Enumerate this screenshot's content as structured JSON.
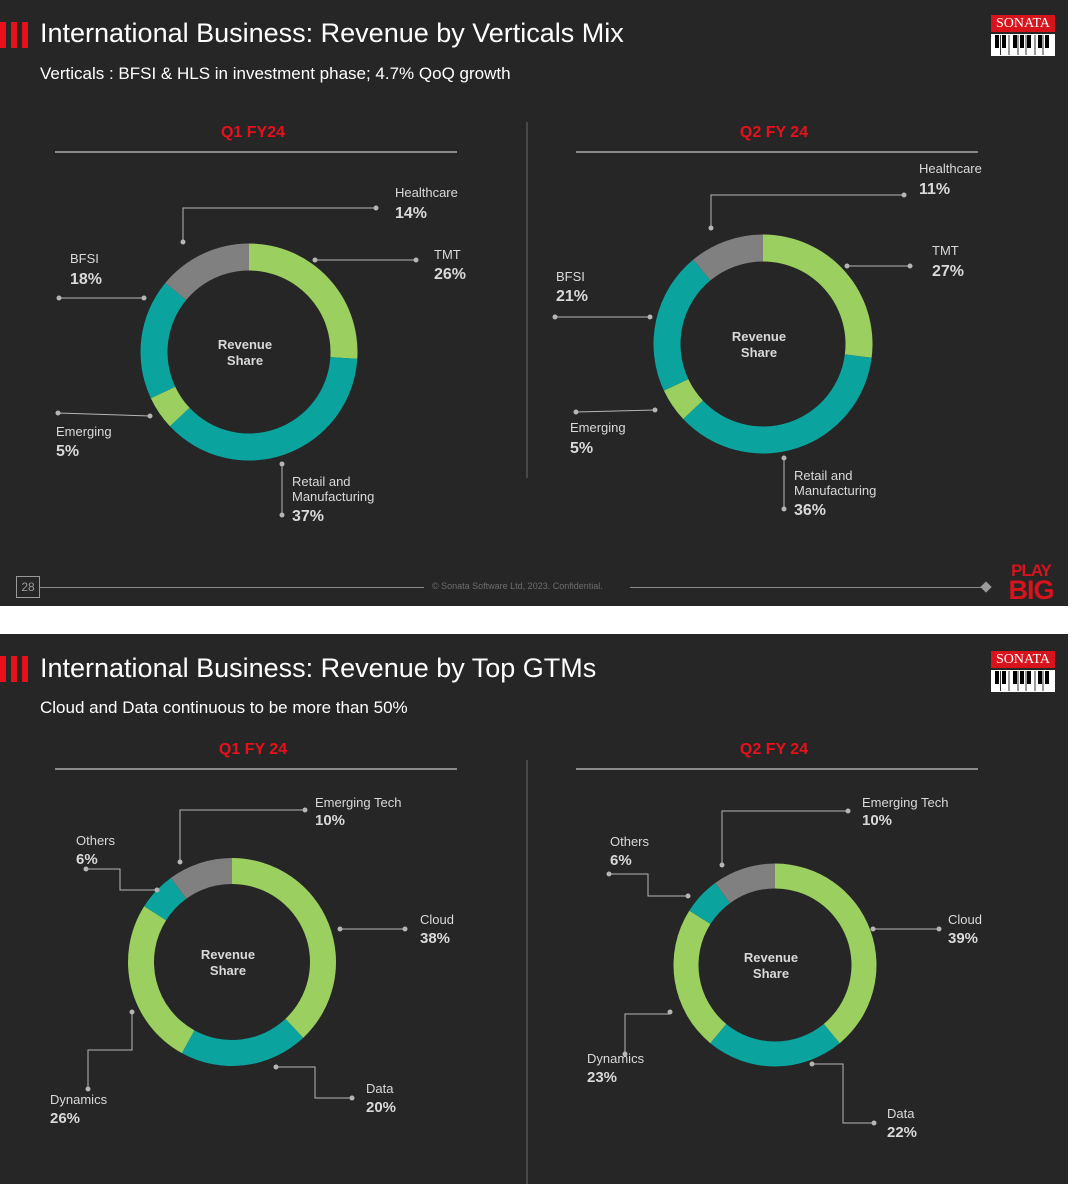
{
  "slides": [
    {
      "title": "International Business: Revenue by Verticals Mix",
      "subtitle": "Verticals : BFSI & HLS in investment phase; 4.7% QoQ growth",
      "logo_text": "SONATA",
      "page_number": "28",
      "copyright": "© Sonata Software Ltd, 2023. Confidential.",
      "play_big": [
        "PLAY",
        "BIG"
      ]
    },
    {
      "title": "International Business: Revenue by Top GTMs",
      "subtitle": "Cloud and Data continuous to be  more than 50%",
      "logo_text": "SONATA"
    }
  ],
  "colors": {
    "background": "#262626",
    "accent_red": "#d7131b",
    "light_green": "#9bcf5f",
    "teal": "#0aa39d",
    "gray": "#808080",
    "text_white": "#ffffff",
    "label_gray": "#d9d9d9"
  },
  "chart_data": [
    {
      "type": "pie",
      "title": "Q1 FY24",
      "center_label": [
        "Revenue",
        "Share"
      ],
      "categories": [
        "TMT",
        "Retail and Manufacturing",
        "Emerging",
        "BFSI",
        "Healthcare"
      ],
      "values": [
        26,
        37,
        5,
        18,
        14
      ],
      "colors": [
        "#9bcf5f",
        "#0aa39d",
        "#9bcf5f",
        "#0aa39d",
        "#808080"
      ]
    },
    {
      "type": "pie",
      "title": "Q2 FY 24",
      "center_label": [
        "Revenue",
        "Share"
      ],
      "categories": [
        "TMT",
        "Retail and Manufacturing",
        "Emerging",
        "BFSI",
        "Healthcare"
      ],
      "values": [
        27,
        36,
        5,
        21,
        11
      ],
      "colors": [
        "#9bcf5f",
        "#0aa39d",
        "#9bcf5f",
        "#0aa39d",
        "#808080"
      ]
    },
    {
      "type": "pie",
      "title": "Q1 FY 24",
      "center_label": [
        "Revenue",
        "Share"
      ],
      "categories": [
        "Cloud",
        "Data",
        "Dynamics",
        "Others",
        "Emerging Tech"
      ],
      "values": [
        38,
        20,
        26,
        6,
        10
      ],
      "colors": [
        "#9bcf5f",
        "#0aa39d",
        "#9bcf5f",
        "#0aa39d",
        "#808080"
      ]
    },
    {
      "type": "pie",
      "title": "Q2 FY 24",
      "center_label": [
        "Revenue",
        "Share"
      ],
      "categories": [
        "Cloud",
        "Data",
        "Dynamics",
        "Others",
        "Emerging Tech"
      ],
      "values": [
        39,
        22,
        23,
        6,
        10
      ],
      "colors": [
        "#9bcf5f",
        "#0aa39d",
        "#9bcf5f",
        "#0aa39d",
        "#808080"
      ]
    }
  ]
}
